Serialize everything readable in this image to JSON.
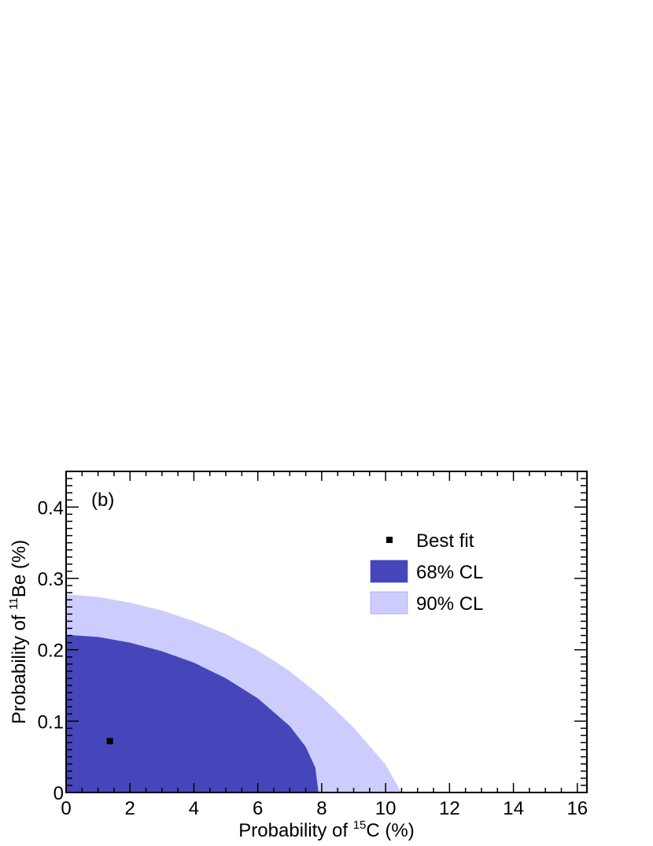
{
  "chart_data": {
    "type": "area",
    "panel_label": "(b)",
    "xlabel": {
      "prefix": "Probability of ",
      "superscript": "15",
      "suffix": "C (%)"
    },
    "ylabel": {
      "prefix": "Probability of ",
      "superscript": "11",
      "suffix": "Be (%)"
    },
    "xlim": [
      0,
      16.3
    ],
    "ylim": [
      0,
      0.45
    ],
    "x_ticks": [
      0,
      2,
      4,
      6,
      8,
      10,
      12,
      14,
      16
    ],
    "x_tick_labels": [
      "0",
      "2",
      "4",
      "6",
      "8",
      "10",
      "12",
      "14",
      "16"
    ],
    "y_ticks": [
      0,
      0.1,
      0.2,
      0.3,
      0.4
    ],
    "y_tick_labels": [
      "0",
      "0.1",
      "0.2",
      "0.3",
      "0.4"
    ],
    "grid": false,
    "legend_position": "top-right",
    "series": [
      {
        "name": "90% CL",
        "kind": "region",
        "color": "#ccccff",
        "boundary": [
          [
            0,
            0.278
          ],
          [
            1,
            0.274
          ],
          [
            2,
            0.266
          ],
          [
            3,
            0.255
          ],
          [
            4,
            0.24
          ],
          [
            5,
            0.222
          ],
          [
            6,
            0.199
          ],
          [
            7,
            0.17
          ],
          [
            8,
            0.134
          ],
          [
            9,
            0.091
          ],
          [
            10,
            0.039
          ],
          [
            10.3,
            0.015
          ],
          [
            10.5,
            0
          ]
        ]
      },
      {
        "name": "68% CL",
        "kind": "region",
        "color": "#4646bb",
        "boundary": [
          [
            0,
            0.221
          ],
          [
            1,
            0.218
          ],
          [
            2,
            0.21
          ],
          [
            3,
            0.198
          ],
          [
            4,
            0.182
          ],
          [
            5,
            0.16
          ],
          [
            6,
            0.132
          ],
          [
            7,
            0.093
          ],
          [
            7.5,
            0.064
          ],
          [
            7.8,
            0.035
          ],
          [
            7.9,
            0
          ]
        ]
      },
      {
        "name": "Best fit",
        "kind": "point",
        "color": "#000000",
        "points": [
          [
            1.37,
            0.072
          ]
        ]
      }
    ]
  }
}
